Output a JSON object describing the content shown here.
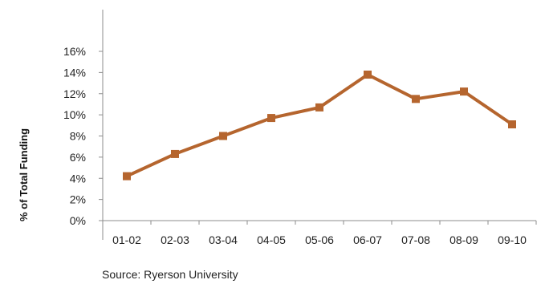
{
  "chart_data": {
    "type": "line",
    "categories": [
      "01-02",
      "02-03",
      "03-04",
      "04-05",
      "05-06",
      "06-07",
      "07-08",
      "08-09",
      "09-10"
    ],
    "series": [
      {
        "values": [
          4.2,
          6.3,
          8.0,
          9.7,
          10.7,
          13.8,
          11.5,
          12.2,
          9.1
        ],
        "color": "#b5652e"
      }
    ],
    "ylabel": "% of Total Funding",
    "xlabel": "",
    "ylim": [
      0,
      16
    ],
    "yticks": [
      0,
      2,
      4,
      6,
      8,
      10,
      12,
      14,
      16
    ],
    "ytick_suffix": "%",
    "grid": false,
    "legend": "none",
    "marker": "square"
  },
  "source": "Source: Ryerson University"
}
